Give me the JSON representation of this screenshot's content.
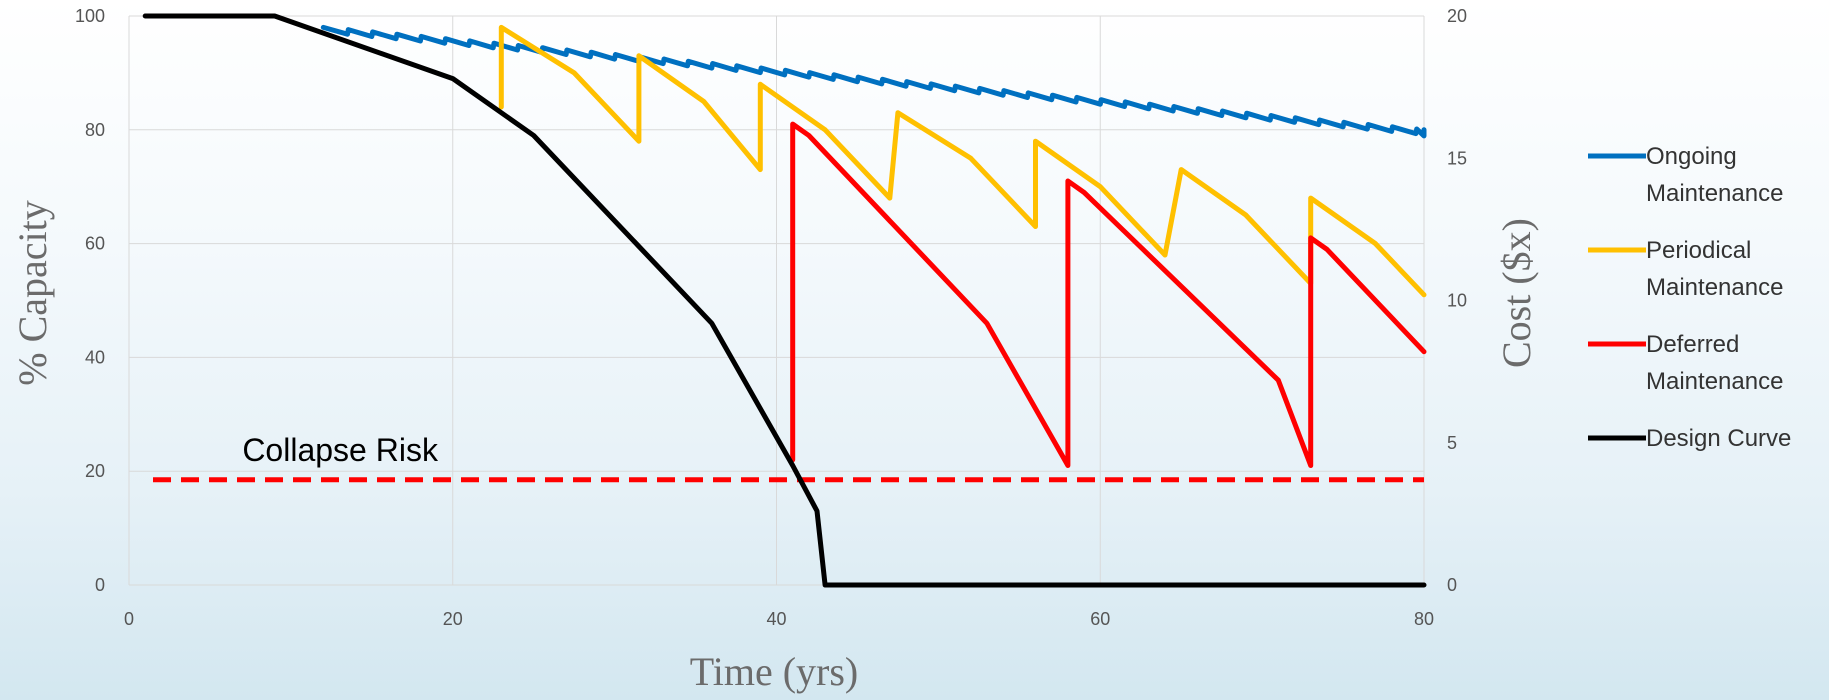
{
  "chart_data": {
    "type": "line",
    "xlabel": "Time (yrs)",
    "ylabel": "% Capacity",
    "y2label": "Cost ($x)",
    "xlim": [
      0,
      80
    ],
    "ylim": [
      0,
      100
    ],
    "y2lim": [
      0,
      20
    ],
    "x_ticks": [
      0,
      20,
      40,
      60,
      80
    ],
    "y_ticks": [
      0,
      20,
      40,
      60,
      80,
      100
    ],
    "y2_ticks": [
      0,
      5,
      10,
      15,
      20
    ],
    "grid": true,
    "legend_position": "right",
    "annotations": [
      {
        "text": "Collapse  Risk",
        "x": 7,
        "y": 20
      }
    ],
    "reference_lines": [
      {
        "name": "collapse-risk-line",
        "y": 18.5,
        "style": "dashed",
        "color": "#ff0000"
      }
    ],
    "series": [
      {
        "name": "Ongoing Maintenance",
        "color": "#0070c0",
        "style": "sawtooth",
        "start": [
          12,
          98
        ],
        "end": [
          80,
          80
        ],
        "cycle_years": 1.5,
        "drop": 1.2
      },
      {
        "name": "Periodical Maintenance",
        "color": "#ffc000",
        "x": [
          23,
          23,
          27.5,
          31.5,
          31.5,
          35.5,
          39,
          39,
          43,
          47,
          47.5,
          52,
          56,
          56,
          60,
          64,
          65,
          69,
          73,
          73,
          77,
          80
        ],
        "y": [
          84,
          98,
          90,
          78,
          93,
          85,
          73,
          88,
          80,
          68,
          83,
          75,
          63,
          78,
          70,
          58,
          73,
          65,
          53,
          68,
          60,
          51
        ]
      },
      {
        "name": "Deferred Maintenance",
        "color": "#ff0000",
        "x": [
          41,
          41,
          42,
          53,
          58,
          58,
          59,
          71,
          73,
          73,
          74,
          80
        ],
        "y": [
          22,
          81,
          79,
          46,
          21,
          71,
          69,
          36,
          21,
          61,
          59,
          41
        ]
      },
      {
        "name": "Design Curve",
        "color": "#000000",
        "x": [
          1,
          9,
          20,
          25,
          36,
          41,
          42.5,
          43,
          80
        ],
        "y": [
          100,
          100,
          89,
          79,
          46,
          21,
          13,
          0,
          0
        ]
      }
    ]
  }
}
